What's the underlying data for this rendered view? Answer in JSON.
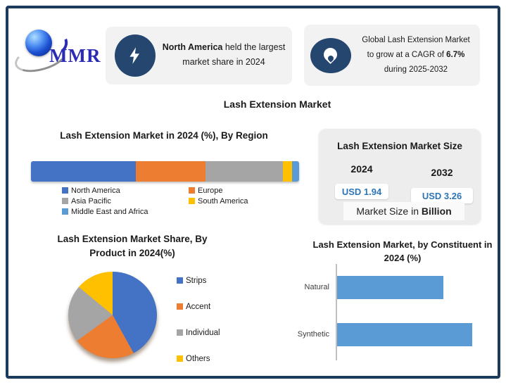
{
  "page": {
    "title": "Lash Extension Market"
  },
  "theme": {
    "border": "#1b3a5c",
    "icon_navy": "#25466f",
    "callout_bg": "#f2f2f2",
    "panel_bg": "#ededed",
    "panel_band_bg": "#fafafa",
    "value_blue": "#2e75b6",
    "bar_blue": "#5b9bd5",
    "logo_blue": "#2b2bb4"
  },
  "logo": {
    "text": "MMR"
  },
  "callouts": {
    "left": {
      "icon": "lightning",
      "highlight": "North America",
      "rest": " held the largest",
      "line2": "market share in 2024"
    },
    "right": {
      "icon": "flame",
      "line1": "Global Lash Extension Market",
      "line2_pre": "to grow at a CAGR of ",
      "cagr": "6.7%",
      "line3": "during 2025-2032"
    }
  },
  "market_size_panel": {
    "title": "Lash Extension Market Size",
    "items": [
      {
        "year": "2024",
        "value": "USD 1.94"
      },
      {
        "year": "2032",
        "value": "USD 3.26"
      }
    ],
    "footnote_pre": "Market Size in ",
    "footnote_bold": "Billion"
  },
  "chart_data": [
    {
      "type": "bar",
      "subtype": "stacked-horizontal-single",
      "title": "Lash Extension Market in 2024 (%), By Region",
      "categories": [
        "North America",
        "Europe",
        "Asia Pacific",
        "South America",
        "Middle East and Africa"
      ],
      "values": [
        39,
        26,
        29,
        3.5,
        2.5
      ],
      "colors": [
        "#4472C4",
        "#ED7D31",
        "#A5A5A5",
        "#FFC000",
        "#5B9BD5"
      ],
      "unit": "%",
      "legend_position": "bottom",
      "grid": false
    },
    {
      "type": "pie",
      "title": "Lash Extension Market Share, By Product in 2024(%)",
      "categories": [
        "Strips",
        "Accent",
        "Individual",
        "Others"
      ],
      "values": [
        42,
        23,
        21,
        14
      ],
      "colors": [
        "#4472C4",
        "#ED7D31",
        "#A5A5A5",
        "#FFC000"
      ],
      "unit": "%",
      "legend_position": "right",
      "start_angle_deg": 0,
      "direction": "clockwise"
    },
    {
      "type": "bar",
      "subtype": "horizontal",
      "title": "Lash Extension Market, by Constituent in 2024 (%)",
      "categories": [
        "Natural",
        "Synthetic"
      ],
      "values": [
        44,
        56
      ],
      "xlim": [
        0,
        60
      ],
      "color": "#5B9BD5",
      "unit": "%",
      "grid": false,
      "legend_position": "none"
    }
  ]
}
